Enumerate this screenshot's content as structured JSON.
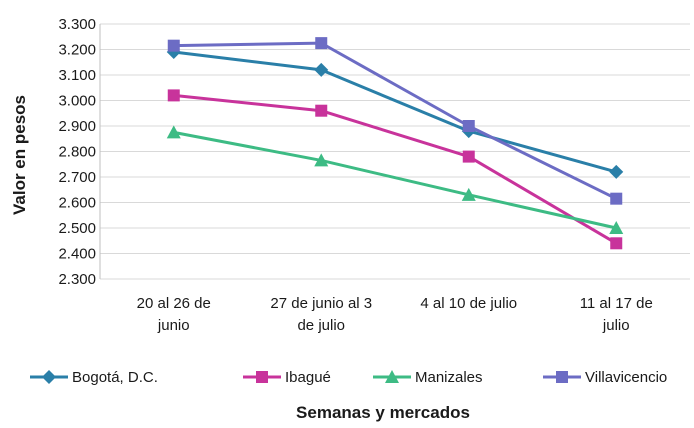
{
  "chart_data": {
    "type": "line",
    "categories": [
      [
        "20 al 26 de",
        "junio"
      ],
      [
        "27 de junio al 3",
        "de julio"
      ],
      [
        "4 al 10 de julio"
      ],
      [
        "11 al 17 de",
        "julio"
      ]
    ],
    "series": [
      {
        "name": "Bogotá, D.C.",
        "values": [
          3190,
          3120,
          2880,
          2720
        ],
        "color": "#2a7fa8",
        "marker": "diamond"
      },
      {
        "name": "Ibagué",
        "values": [
          3020,
          2960,
          2780,
          2440
        ],
        "color": "#c8339b",
        "marker": "square"
      },
      {
        "name": "Manizales",
        "values": [
          2875,
          2765,
          2630,
          2500
        ],
        "color": "#3dbb84",
        "marker": "triangle"
      },
      {
        "name": "Villavicencio",
        "values": [
          3215,
          3225,
          2900,
          2615
        ],
        "color": "#6c6cc4",
        "marker": "square"
      }
    ],
    "yticks": [
      "2.300",
      "2.400",
      "2.500",
      "2.600",
      "2.700",
      "2.800",
      "2.900",
      "3.000",
      "3.100",
      "3.200",
      "3.300"
    ],
    "ylim": [
      2300,
      3300
    ],
    "ylabel": "Valor en pesos",
    "xlabel": "Semanas y mercados",
    "grid": true,
    "legend": "bottom"
  }
}
